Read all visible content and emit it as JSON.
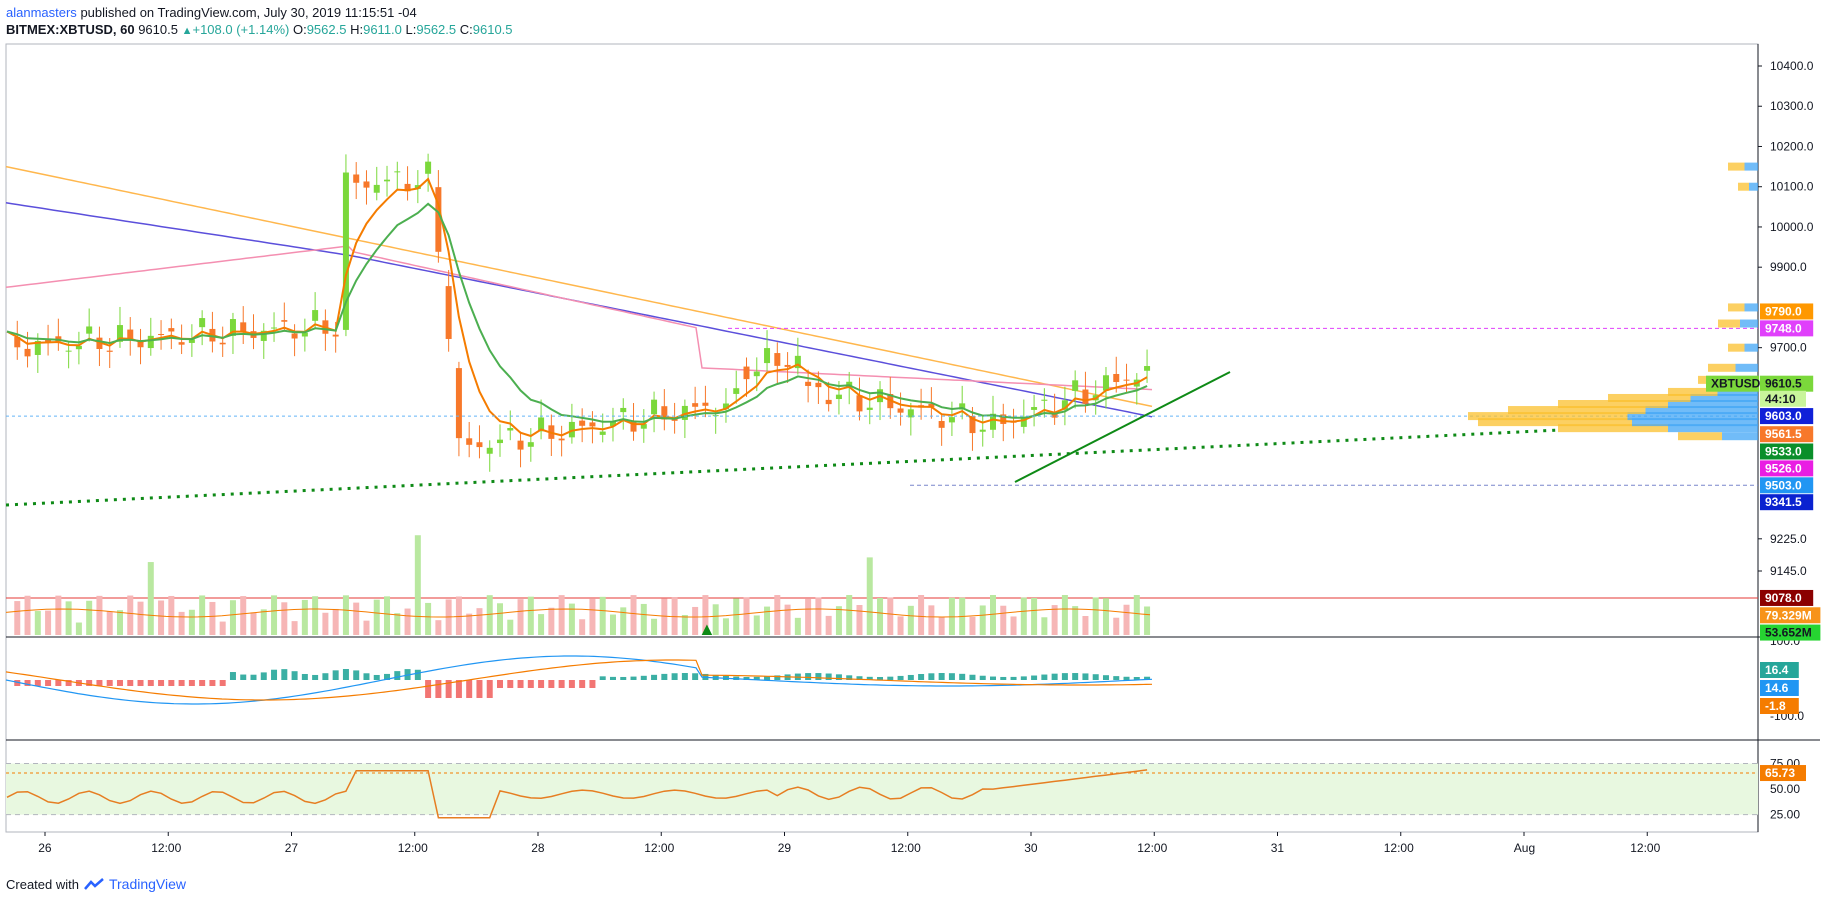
{
  "header": {
    "author": "alanmasters",
    "published_text": "published on TradingView.com, July 30, 2019 11:15:51 -04",
    "symbol": "BITMEX:XBTUSD, 60",
    "last": "9610.5",
    "change": "+108.0 (+1.14%)",
    "o_label": "O:",
    "o": "9562.5",
    "h_label": "H:",
    "h": "9611.0",
    "l_label": "L:",
    "l": "9562.5",
    "c_label": "C:",
    "c": "9610.5"
  },
  "footer": {
    "created_with": "Created with",
    "brand": "TradingView"
  },
  "colors": {
    "up": "#7bd83b",
    "down": "#f7782a",
    "ema_green": "#4caf50",
    "ema_orange": "#f57c00",
    "ma_blue": "#5b4fdb",
    "ma_pink": "#f48fb1",
    "ma_orange": "#ffb74d",
    "rsi_line": "#e67e22",
    "rsi_band": "#e8f8e0",
    "support_line": "#0e8a16"
  },
  "price_axis": {
    "ticks": [
      "10400.0",
      "10300.0",
      "10200.0",
      "10100.0",
      "10000.0",
      "9900.0",
      "9700.0",
      "9225.0",
      "9145.0"
    ],
    "badges": [
      {
        "text": "9790.0",
        "bg": "#ff9800",
        "fg": "#ffffff",
        "price": 9790
      },
      {
        "text": "9748.0",
        "bg": "#e040fb",
        "fg": "#ffffff",
        "price": 9748
      },
      {
        "text": "XBTUSD",
        "bg": "#7bd83b",
        "fg": "#131722",
        "price": 9610.5,
        "offset": -54
      },
      {
        "text": "9610.5",
        "bg": "#7bd83b",
        "fg": "#131722",
        "price": 9610.5
      },
      {
        "text": "44:10",
        "bg": "#c9f59b",
        "fg": "#131722",
        "price": 9573
      },
      {
        "text": "9603.0",
        "bg": "#1020d8",
        "fg": "#ffffff",
        "price": 9530
      },
      {
        "text": "9561.5",
        "bg": "#f7782a",
        "fg": "#ffffff",
        "price": 9485
      },
      {
        "text": "9533.0",
        "bg": "#0a8f2a",
        "fg": "#ffffff",
        "price": 9442
      },
      {
        "text": "9526.0",
        "bg": "#e91ee3",
        "fg": "#ffffff",
        "price": 9400
      },
      {
        "text": "9503.0",
        "bg": "#2196f3",
        "fg": "#ffffff",
        "price": 9358
      },
      {
        "text": "9341.5",
        "bg": "#0a22d0",
        "fg": "#ffffff",
        "price": 9316
      },
      {
        "text": "9078.0",
        "bg": "#8b0000",
        "fg": "#ffffff",
        "price": 9078
      },
      {
        "text": "79.329M",
        "bg": "#f7931a",
        "fg": "#ffffff",
        "price": 9035
      },
      {
        "text": "53.652M",
        "bg": "#26d431",
        "fg": "#131722",
        "price": 8992
      }
    ]
  },
  "macd_axis": {
    "ticks": [
      "100.0",
      "-100.0"
    ],
    "badges": [
      {
        "text": "16.4",
        "bg": "#26a69a",
        "fg": "#ffffff",
        "val": 16.4
      },
      {
        "text": "14.6",
        "bg": "#2196f3",
        "fg": "#ffffff",
        "val": 14.6
      },
      {
        "text": "-1.8",
        "bg": "#f57c00",
        "fg": "#ffffff",
        "val": -1.8
      }
    ]
  },
  "rsi_axis": {
    "ticks": [
      "75.00",
      "50.00",
      "25.00"
    ],
    "badge": {
      "text": "65.73",
      "bg": "#f57c00",
      "fg": "#ffffff",
      "val": 65.73
    }
  },
  "time_axis": [
    {
      "label": "26",
      "t": 0.0
    },
    {
      "label": "12:00",
      "t": 0.5
    },
    {
      "label": "27",
      "t": 1.0
    },
    {
      "label": "12:00",
      "t": 1.5
    },
    {
      "label": "28",
      "t": 2.0
    },
    {
      "label": "12:00",
      "t": 2.5
    },
    {
      "label": "29",
      "t": 3.0
    },
    {
      "label": "12:00",
      "t": 3.5
    },
    {
      "label": "30",
      "t": 4.0
    },
    {
      "label": "12:00",
      "t": 4.5
    },
    {
      "label": "31",
      "t": 5.0
    },
    {
      "label": "12:00",
      "t": 5.5
    },
    {
      "label": "Aug",
      "t": 6.0
    },
    {
      "label": "12:00",
      "t": 6.5
    }
  ]
}
